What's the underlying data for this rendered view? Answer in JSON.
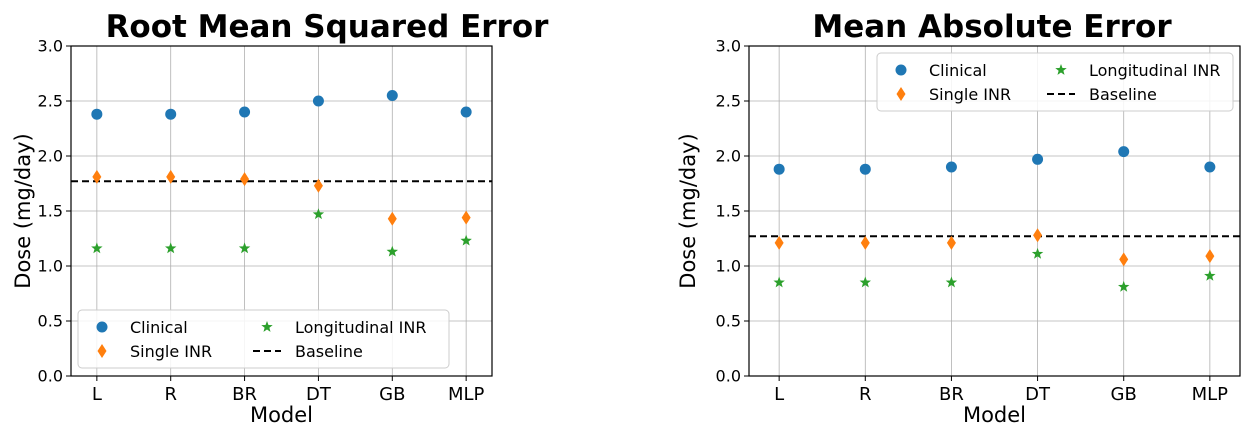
{
  "chart_data": [
    {
      "type": "scatter",
      "title": "Root Mean Squared Error",
      "xlabel": "Model",
      "ylabel": "Dose (mg/day)",
      "categories": [
        "L",
        "R",
        "BR",
        "DT",
        "GB",
        "MLP"
      ],
      "ylim": [
        0,
        3.0
      ],
      "yticks": [
        "0.0",
        "0.5",
        "1.0",
        "1.5",
        "2.0",
        "2.5",
        "3.0"
      ],
      "grid": true,
      "legend_position": "bottom-left",
      "series": [
        {
          "name": "Clinical",
          "marker": "circle",
          "color": "#1f77b4",
          "values": [
            2.38,
            2.38,
            2.4,
            2.5,
            2.55,
            2.4
          ]
        },
        {
          "name": "Single INR",
          "marker": "diamond",
          "color": "#ff7f0e",
          "values": [
            1.81,
            1.81,
            1.79,
            1.73,
            1.43,
            1.44
          ]
        },
        {
          "name": "Longitudinal INR",
          "marker": "star",
          "color": "#2ca02c",
          "values": [
            1.16,
            1.16,
            1.16,
            1.47,
            1.13,
            1.23
          ]
        }
      ],
      "baseline": {
        "name": "Baseline",
        "style": "dashed",
        "color": "#000000",
        "value": 1.77
      }
    },
    {
      "type": "scatter",
      "title": "Mean Absolute Error",
      "xlabel": "Model",
      "ylabel": "Dose (mg/day)",
      "categories": [
        "L",
        "R",
        "BR",
        "DT",
        "GB",
        "MLP"
      ],
      "ylim": [
        0,
        3.0
      ],
      "yticks": [
        "0.0",
        "0.5",
        "1.0",
        "1.5",
        "2.0",
        "2.5",
        "3.0"
      ],
      "grid": true,
      "legend_position": "top-right",
      "series": [
        {
          "name": "Clinical",
          "marker": "circle",
          "color": "#1f77b4",
          "values": [
            1.88,
            1.88,
            1.9,
            1.97,
            2.04,
            1.9
          ]
        },
        {
          "name": "Single INR",
          "marker": "diamond",
          "color": "#ff7f0e",
          "values": [
            1.21,
            1.21,
            1.21,
            1.28,
            1.06,
            1.09
          ]
        },
        {
          "name": "Longitudinal INR",
          "marker": "star",
          "color": "#2ca02c",
          "values": [
            0.85,
            0.85,
            0.85,
            1.11,
            0.81,
            0.91
          ]
        }
      ],
      "baseline": {
        "name": "Baseline",
        "style": "dashed",
        "color": "#000000",
        "value": 1.27
      }
    }
  ]
}
